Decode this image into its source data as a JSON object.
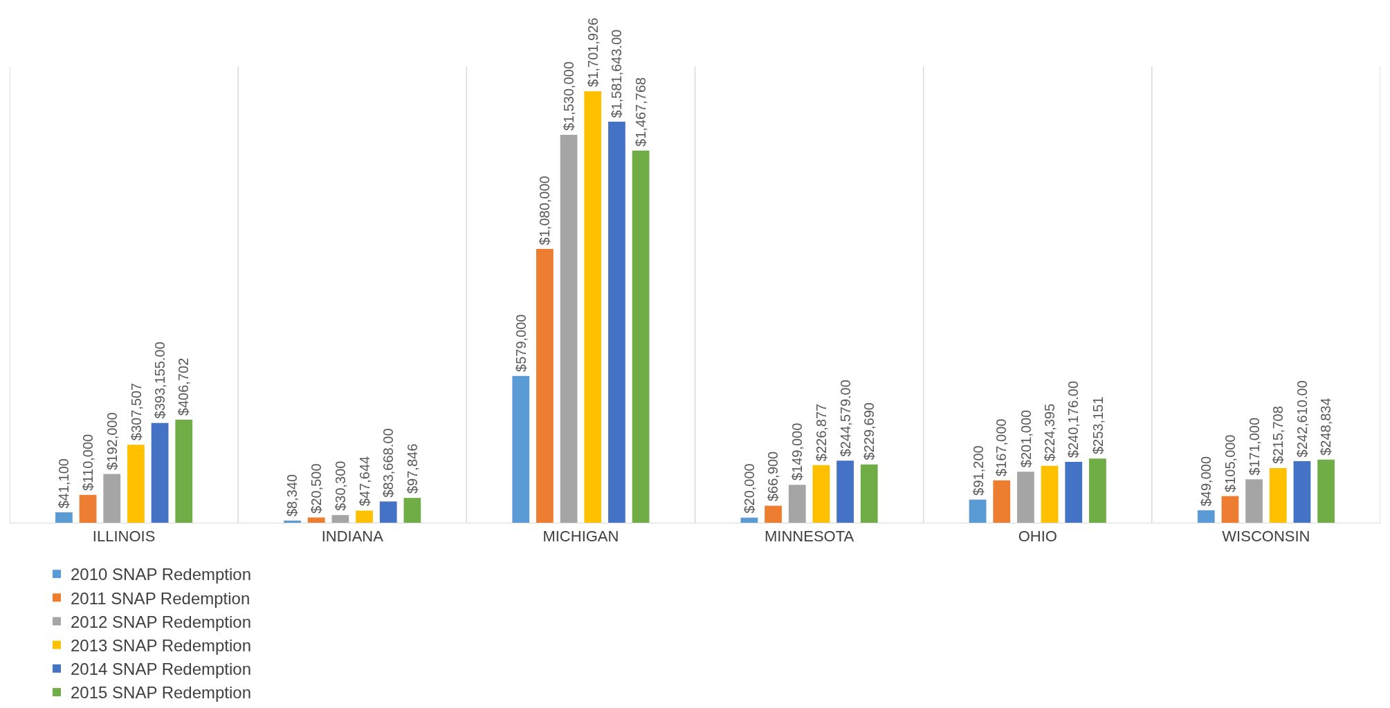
{
  "chart_data": {
    "type": "bar",
    "categories": [
      "ILLINOIS",
      "INDIANA",
      "MICHIGAN",
      "MINNESOTA",
      "OHIO",
      "WISCONSIN"
    ],
    "series": [
      {
        "name": "2010 SNAP Redemption",
        "color": "#5b9bd5",
        "values": [
          41100,
          8340,
          579000,
          20000,
          91200,
          49000
        ],
        "value_labels": [
          "$41,100",
          "$8,340",
          "$579,000",
          "$20,000",
          "$91,200",
          "$49,000"
        ]
      },
      {
        "name": "2011 SNAP Redemption",
        "color": "#ed7d31",
        "values": [
          110000,
          20500,
          1080000,
          66900,
          167000,
          105000
        ],
        "value_labels": [
          "$110,000",
          "$20,500",
          "$1,080,000",
          "$66,900",
          "$167,000",
          "$105,000"
        ]
      },
      {
        "name": "2012 SNAP Redemption",
        "color": "#a5a5a5",
        "values": [
          192000,
          30300,
          1530000,
          149000,
          201000,
          171000
        ],
        "value_labels": [
          "$192,000",
          "$30,300",
          "$1,530,000",
          "$149,000",
          "$201,000",
          "$171,000"
        ]
      },
      {
        "name": "2013 SNAP Redemption",
        "color": "#ffc000",
        "values": [
          307507,
          47644,
          1701926,
          226877,
          224395,
          215708
        ],
        "value_labels": [
          "$307,507",
          "$47,644",
          "$1,701,926",
          "$226,877",
          "$224,395",
          "$215,708"
        ]
      },
      {
        "name": "2014 SNAP Redemption",
        "color": "#4472c4",
        "values": [
          393155,
          83668,
          1581643,
          244579,
          240176,
          242610
        ],
        "value_labels": [
          "$393,155.00",
          "$83,668.00",
          "$1,581,643.00",
          "$244,579.00",
          "$240,176.00",
          "$242,610.00"
        ]
      },
      {
        "name": "2015 SNAP Redemption",
        "color": "#70ad47",
        "values": [
          406702,
          97846,
          1467768,
          229690,
          253151,
          248834
        ],
        "value_labels": [
          "$406,702",
          "$97,846",
          "$1,467,768",
          "$229,690",
          "$253,151",
          "$248,834"
        ]
      }
    ],
    "ylim": [
      0,
      1800000
    ],
    "tick_labels": "x",
    "grid": "x",
    "legend": "bottom"
  }
}
